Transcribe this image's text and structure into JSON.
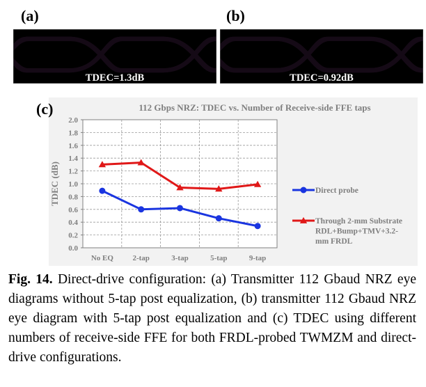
{
  "panels": {
    "a": {
      "label": "(a)",
      "tdec": "TDEC=1.3dB"
    },
    "b": {
      "label": "(b)",
      "tdec": "TDEC=0.92dB"
    },
    "c": {
      "label": "(c)"
    }
  },
  "colors": {
    "eye": "#d060d8",
    "direct": "#1a35e0",
    "through": "#e01818"
  },
  "chart_data": {
    "type": "line",
    "title": "112 Gbps NRZ: TDEC vs. Number of Receive-side FFE taps",
    "xlabel": "",
    "ylabel": "TDEC (dB)",
    "categories": [
      "No EQ",
      "2-tap",
      "3-tap",
      "5-tap",
      "9-tap"
    ],
    "ylim": [
      0.0,
      2.0
    ],
    "yticks": [
      "0.0",
      "0.2",
      "0.4",
      "0.6",
      "0.8",
      "1.0",
      "1.2",
      "1.4",
      "1.6",
      "1.8",
      "2.0"
    ],
    "grid": true,
    "legend_position": "right",
    "series": [
      {
        "name": "Direct probe",
        "legend_lines": [
          "Direct probe"
        ],
        "marker": "circle",
        "color": "#1a35e0",
        "values": [
          0.89,
          0.6,
          0.62,
          0.46,
          0.34
        ]
      },
      {
        "name": "Through 2-mm Substrate RDL+Bump+TMV+3.2-mm FRDL",
        "legend_lines": [
          "Through 2-mm Substrate",
          "RDL+Bump+TMV+3.2-",
          "mm FRDL"
        ],
        "marker": "triangle",
        "color": "#e01818",
        "values": [
          1.3,
          1.33,
          0.94,
          0.92,
          0.99
        ]
      }
    ]
  },
  "caption": {
    "fig": "Fig. 14.",
    "text": "Direct-drive configuration: (a) Transmitter 112 Gbaud NRZ eye diagrams without 5-tap post equalization, (b) transmitter 112 Gbaud NRZ eye diagram with 5-tap post equalization and (c) TDEC using different numbers of receive-side FFE for both FRDL-probed TWMZM and direct-drive configurations."
  }
}
